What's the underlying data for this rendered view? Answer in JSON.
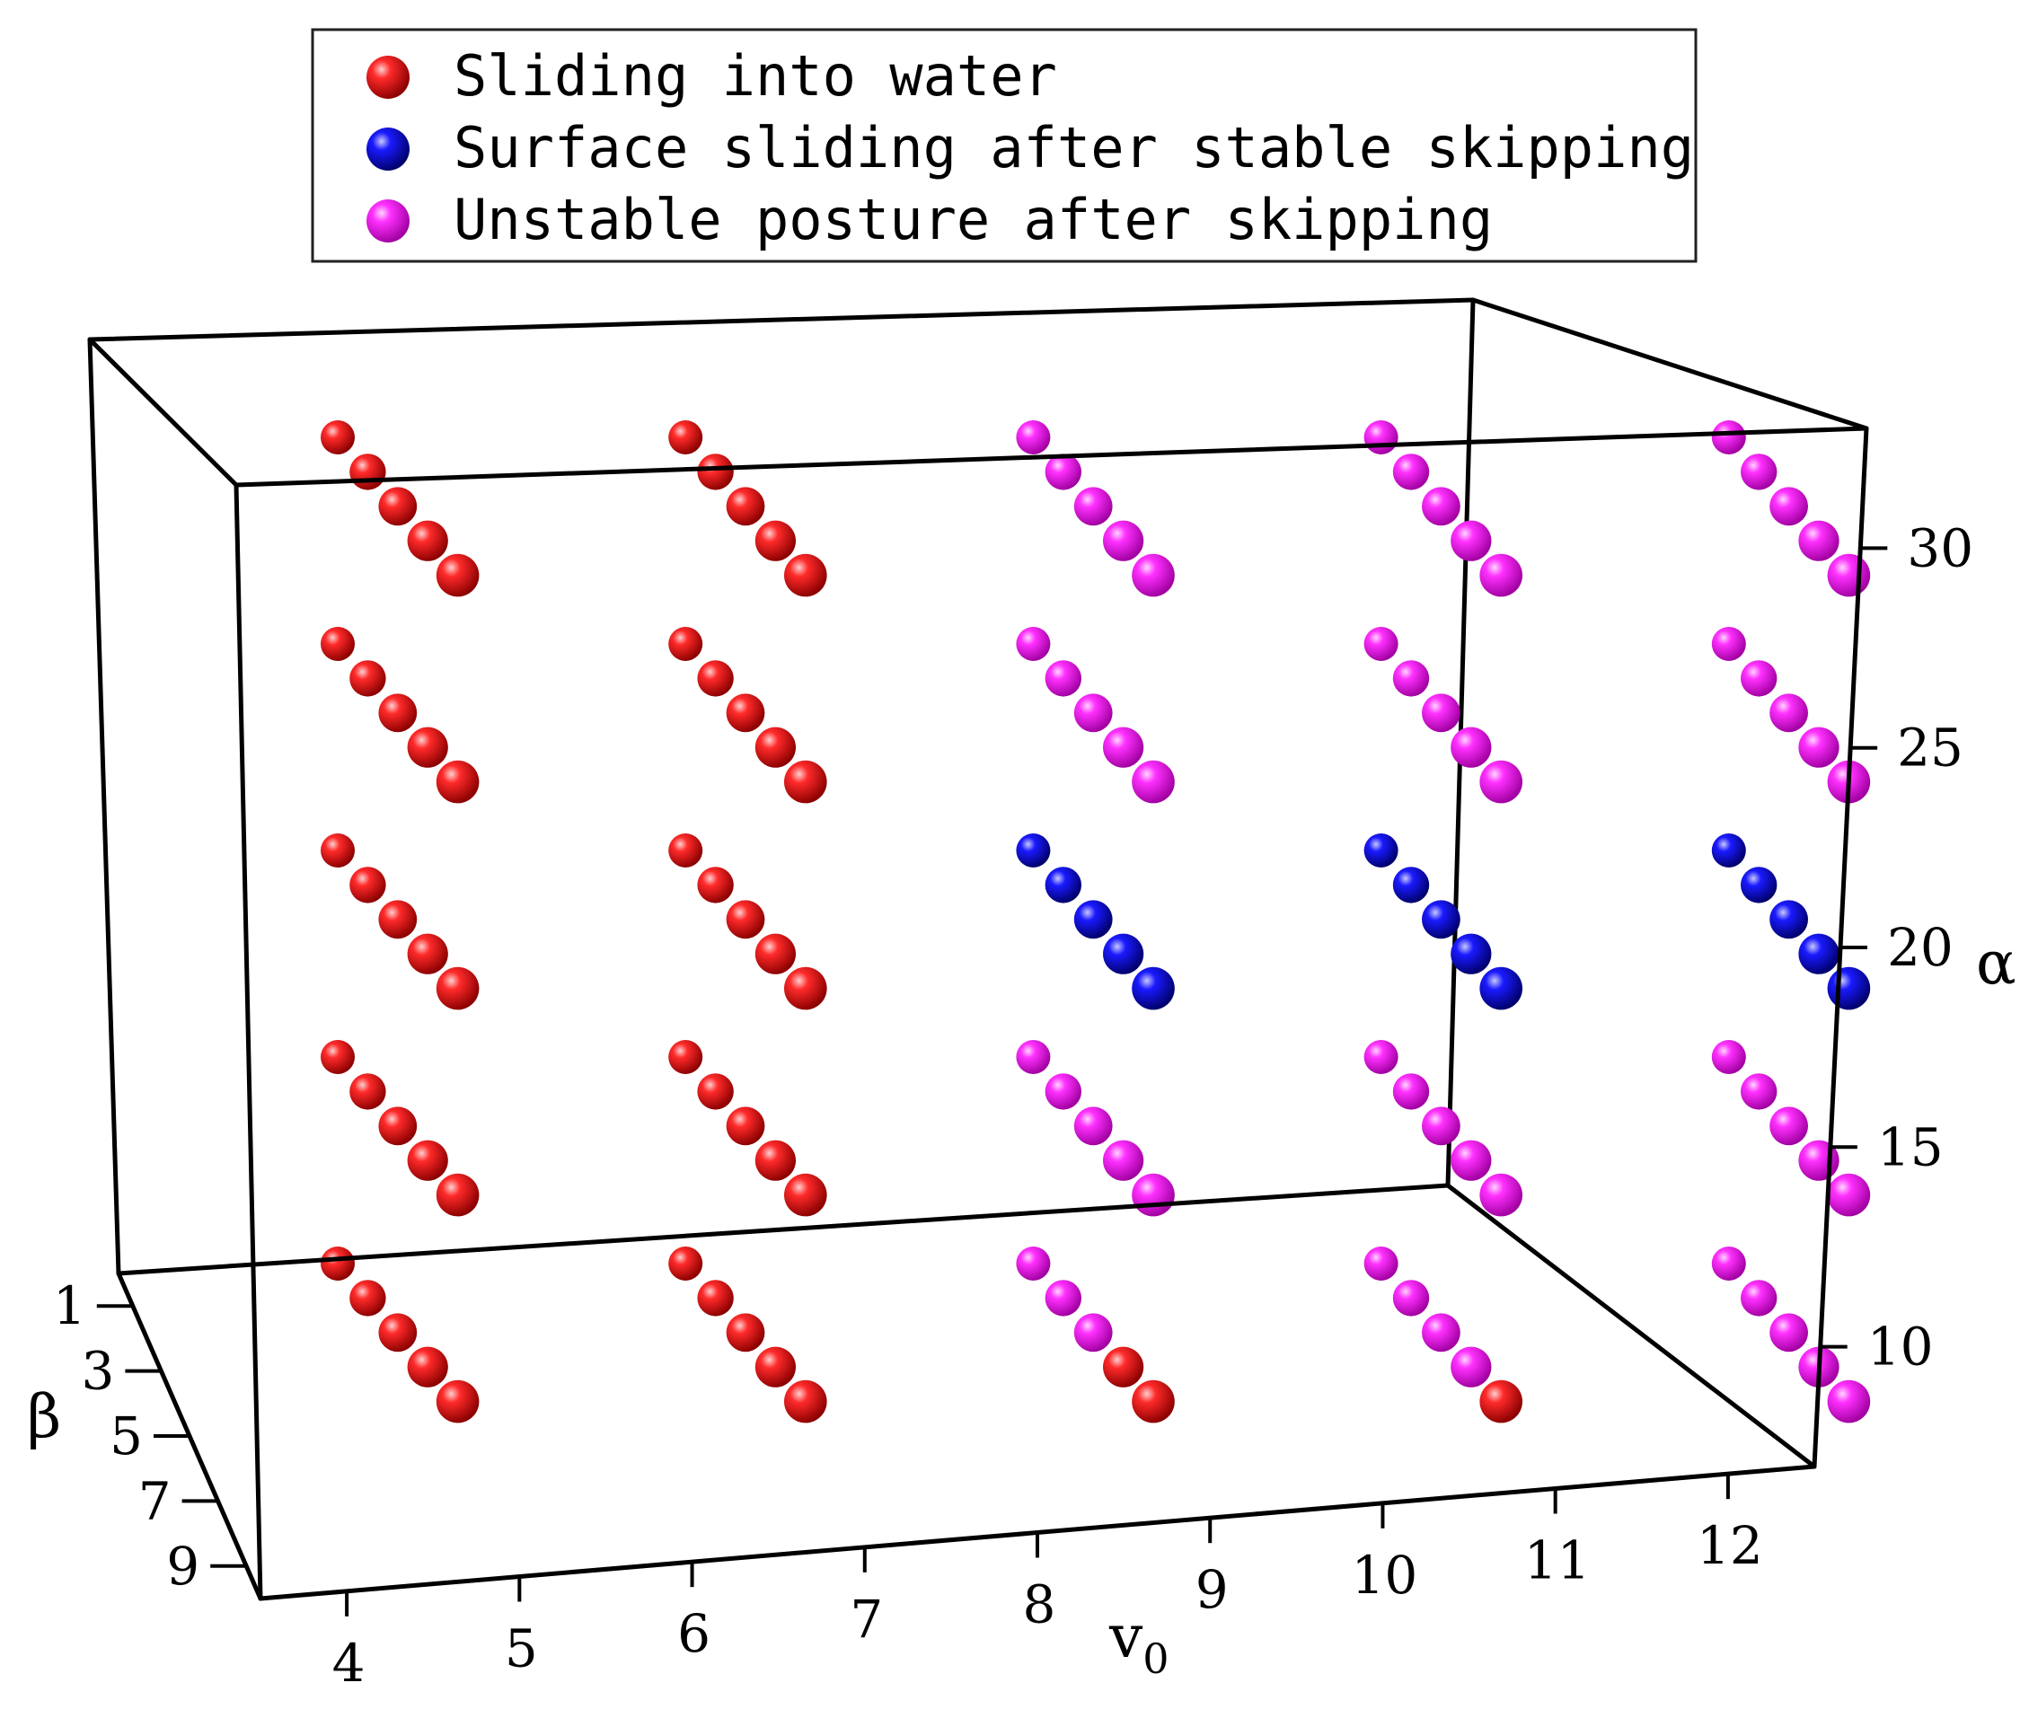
{
  "chart_data": {
    "type": "scatter",
    "xlabel": "v",
    "xlabel_sub": "0",
    "ylabel": "β",
    "zlabel": "α",
    "x_ticks": [
      4,
      5,
      6,
      7,
      8,
      9,
      10,
      11,
      12
    ],
    "y_ticks": [
      1,
      3,
      5,
      7,
      9
    ],
    "z_ticks": [
      10,
      15,
      20,
      25,
      30
    ],
    "xlim": [
      3.5,
      12.5
    ],
    "ylim": [
      0,
      10
    ],
    "zlim": [
      7,
      33
    ],
    "legend_position": "top-center",
    "colors": {
      "Sliding into water": "#e00000",
      "Surface sliding after stable skipping": "#0000cc",
      "Unstable posture after skipping": "#ff00ff"
    },
    "series": [
      {
        "name": "Sliding into water",
        "color": "#e00000",
        "points": [
          [
            4,
            1,
            30
          ],
          [
            4,
            3,
            30
          ],
          [
            4,
            5,
            30
          ],
          [
            4,
            7,
            30
          ],
          [
            4,
            9,
            30
          ],
          [
            4,
            1,
            25
          ],
          [
            4,
            3,
            25
          ],
          [
            4,
            5,
            25
          ],
          [
            4,
            7,
            25
          ],
          [
            4,
            9,
            25
          ],
          [
            4,
            1,
            20
          ],
          [
            4,
            3,
            20
          ],
          [
            4,
            5,
            20
          ],
          [
            4,
            7,
            20
          ],
          [
            4,
            9,
            20
          ],
          [
            4,
            1,
            15
          ],
          [
            4,
            3,
            15
          ],
          [
            4,
            5,
            15
          ],
          [
            4,
            7,
            15
          ],
          [
            4,
            9,
            15
          ],
          [
            4,
            1,
            10
          ],
          [
            4,
            3,
            10
          ],
          [
            4,
            5,
            10
          ],
          [
            4,
            7,
            10
          ],
          [
            4,
            9,
            10
          ],
          [
            6,
            1,
            30
          ],
          [
            6,
            3,
            30
          ],
          [
            6,
            5,
            30
          ],
          [
            6,
            7,
            30
          ],
          [
            6,
            9,
            30
          ],
          [
            6,
            1,
            25
          ],
          [
            6,
            3,
            25
          ],
          [
            6,
            5,
            25
          ],
          [
            6,
            7,
            25
          ],
          [
            6,
            9,
            25
          ],
          [
            6,
            1,
            20
          ],
          [
            6,
            3,
            20
          ],
          [
            6,
            5,
            20
          ],
          [
            6,
            7,
            20
          ],
          [
            6,
            9,
            20
          ],
          [
            6,
            1,
            15
          ],
          [
            6,
            3,
            15
          ],
          [
            6,
            5,
            15
          ],
          [
            6,
            7,
            15
          ],
          [
            6,
            9,
            15
          ],
          [
            6,
            1,
            10
          ],
          [
            6,
            3,
            10
          ],
          [
            6,
            5,
            10
          ],
          [
            6,
            7,
            10
          ],
          [
            6,
            9,
            10
          ],
          [
            8,
            7,
            10
          ],
          [
            8,
            9,
            10
          ],
          [
            10,
            9,
            10
          ]
        ]
      },
      {
        "name": "Surface sliding after stable skipping",
        "color": "#0000cc",
        "points": [
          [
            8,
            1,
            20
          ],
          [
            8,
            3,
            20
          ],
          [
            8,
            5,
            20
          ],
          [
            8,
            7,
            20
          ],
          [
            8,
            9,
            20
          ],
          [
            10,
            1,
            20
          ],
          [
            10,
            3,
            20
          ],
          [
            10,
            5,
            20
          ],
          [
            10,
            7,
            20
          ],
          [
            10,
            9,
            20
          ],
          [
            12,
            1,
            20
          ],
          [
            12,
            3,
            20
          ],
          [
            12,
            5,
            20
          ],
          [
            12,
            7,
            20
          ],
          [
            12,
            9,
            20
          ]
        ]
      },
      {
        "name": "Unstable posture after skipping",
        "color": "#ff00ff",
        "points": [
          [
            8,
            1,
            30
          ],
          [
            8,
            3,
            30
          ],
          [
            8,
            5,
            30
          ],
          [
            8,
            7,
            30
          ],
          [
            8,
            9,
            30
          ],
          [
            8,
            1,
            25
          ],
          [
            8,
            3,
            25
          ],
          [
            8,
            5,
            25
          ],
          [
            8,
            7,
            25
          ],
          [
            8,
            9,
            25
          ],
          [
            8,
            1,
            15
          ],
          [
            8,
            3,
            15
          ],
          [
            8,
            5,
            15
          ],
          [
            8,
            7,
            15
          ],
          [
            8,
            9,
            15
          ],
          [
            8,
            1,
            10
          ],
          [
            8,
            3,
            10
          ],
          [
            8,
            5,
            10
          ],
          [
            10,
            1,
            30
          ],
          [
            10,
            3,
            30
          ],
          [
            10,
            5,
            30
          ],
          [
            10,
            7,
            30
          ],
          [
            10,
            9,
            30
          ],
          [
            10,
            1,
            25
          ],
          [
            10,
            3,
            25
          ],
          [
            10,
            5,
            25
          ],
          [
            10,
            7,
            25
          ],
          [
            10,
            9,
            25
          ],
          [
            10,
            1,
            15
          ],
          [
            10,
            3,
            15
          ],
          [
            10,
            5,
            15
          ],
          [
            10,
            7,
            15
          ],
          [
            10,
            9,
            15
          ],
          [
            10,
            1,
            10
          ],
          [
            10,
            3,
            10
          ],
          [
            10,
            5,
            10
          ],
          [
            10,
            7,
            10
          ],
          [
            12,
            1,
            30
          ],
          [
            12,
            3,
            30
          ],
          [
            12,
            5,
            30
          ],
          [
            12,
            7,
            30
          ],
          [
            12,
            9,
            30
          ],
          [
            12,
            1,
            25
          ],
          [
            12,
            3,
            25
          ],
          [
            12,
            5,
            25
          ],
          [
            12,
            7,
            25
          ],
          [
            12,
            9,
            25
          ],
          [
            12,
            1,
            15
          ],
          [
            12,
            3,
            15
          ],
          [
            12,
            5,
            15
          ],
          [
            12,
            7,
            15
          ],
          [
            12,
            9,
            15
          ],
          [
            12,
            1,
            10
          ],
          [
            12,
            3,
            10
          ],
          [
            12,
            5,
            10
          ],
          [
            12,
            7,
            10
          ],
          [
            12,
            9,
            10
          ]
        ]
      }
    ]
  }
}
